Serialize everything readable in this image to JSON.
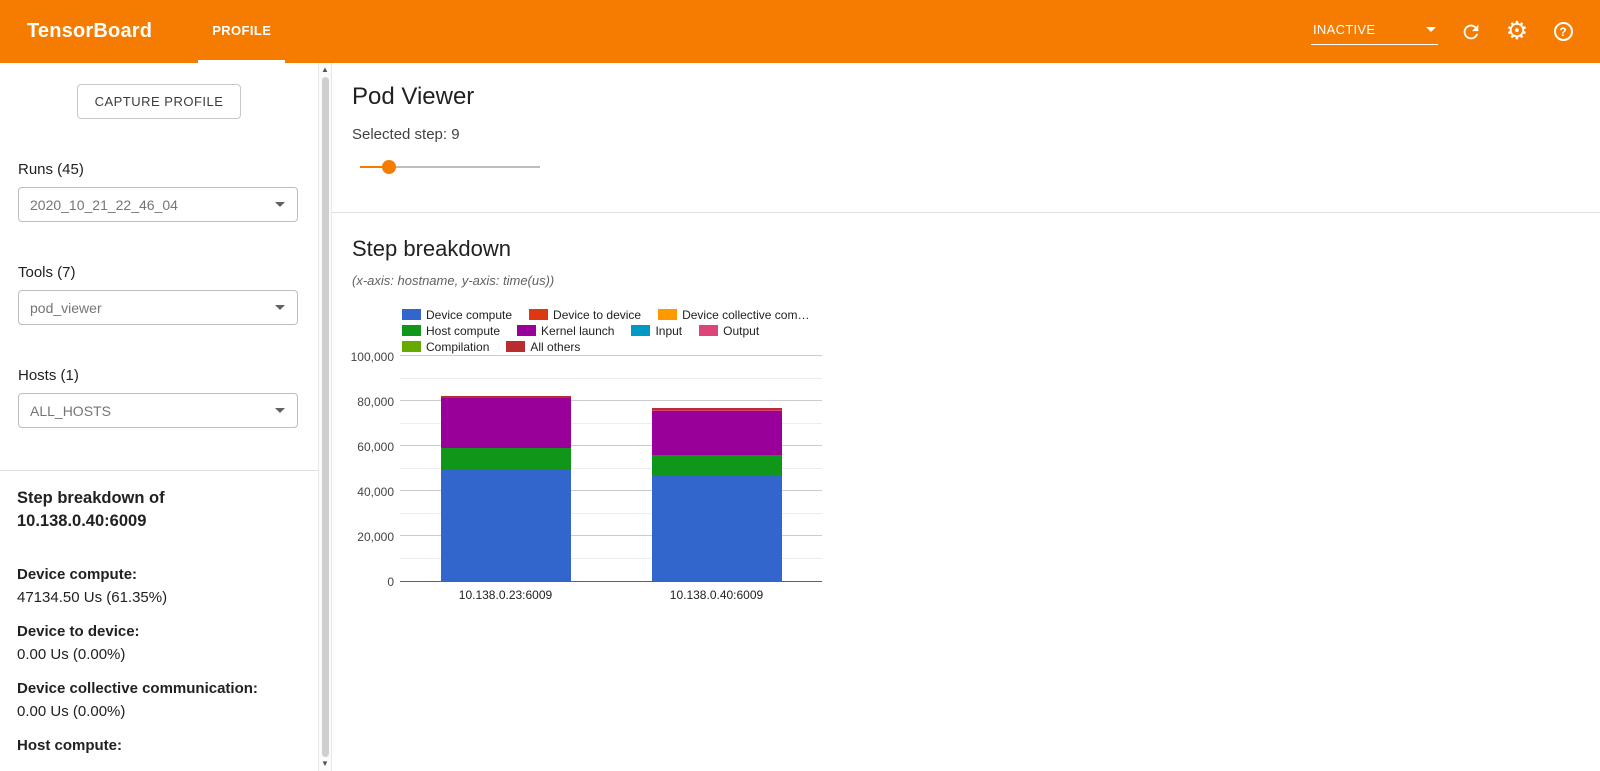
{
  "header": {
    "brand": "TensorBoard",
    "tab": "PROFILE",
    "status": "INACTIVE",
    "accent_color": "#f57c00"
  },
  "sidebar": {
    "capture_button": "CAPTURE PROFILE",
    "runs": {
      "label": "Runs (45)",
      "value": "2020_10_21_22_46_04"
    },
    "tools": {
      "label": "Tools (7)",
      "value": "pod_viewer"
    },
    "hosts": {
      "label": "Hosts (1)",
      "value": "ALL_HOSTS"
    },
    "breakdown": {
      "title_line1": "Step breakdown of",
      "title_line2": "10.138.0.40:6009",
      "stats": [
        {
          "label": "Device compute:",
          "value": "47134.50 Us (61.35%)"
        },
        {
          "label": "Device to device:",
          "value": "0.00 Us (0.00%)"
        },
        {
          "label": "Device collective communication:",
          "value": "0.00 Us (0.00%)"
        },
        {
          "label": "Host compute:",
          "value": ""
        }
      ]
    }
  },
  "main": {
    "title": "Pod Viewer",
    "selected_step": "Selected step: 9",
    "slider_percent": 16,
    "section_title": "Step breakdown",
    "axis_note": "(x-axis: hostname, y-axis: time(us))"
  },
  "chart_data": {
    "type": "bar",
    "stacked": true,
    "title": "Step breakdown",
    "xlabel": "hostname",
    "ylabel": "time(us)",
    "categories": [
      "10.138.0.23:6009",
      "10.138.0.40:6009"
    ],
    "series": [
      {
        "name": "Device compute",
        "color": "#3366cc",
        "values": [
          49400,
          47134.5
        ]
      },
      {
        "name": "Device to device",
        "color": "#dc3912",
        "values": [
          0,
          0
        ]
      },
      {
        "name": "Device collective communication",
        "color": "#ff9900",
        "values": [
          0,
          0
        ]
      },
      {
        "name": "Host compute",
        "color": "#109618",
        "values": [
          9600,
          8900
        ]
      },
      {
        "name": "Kernel launch",
        "color": "#990099",
        "values": [
          22200,
          19400
        ]
      },
      {
        "name": "Input",
        "color": "#0099c6",
        "values": [
          0,
          0
        ]
      },
      {
        "name": "Output",
        "color": "#dd4477",
        "values": [
          0,
          400
        ]
      },
      {
        "name": "Compilation",
        "color": "#66aa00",
        "values": [
          0,
          0
        ]
      },
      {
        "name": "All others",
        "color": "#b82e2e",
        "values": [
          900,
          1000
        ]
      }
    ],
    "ylim": [
      0,
      100000
    ],
    "ytick_step": 20000,
    "minor_tick_step": 10000,
    "yticks": [
      "0",
      "20,000",
      "40,000",
      "60,000",
      "80,000",
      "100,000"
    ],
    "legend_position": "top",
    "legend_rows": [
      [
        "Device compute",
        "Device to device",
        "Device collective com…"
      ],
      [
        "Host compute",
        "Kernel launch",
        "Input",
        "Output"
      ],
      [
        "Compilation",
        "All others"
      ]
    ],
    "grid": true
  }
}
